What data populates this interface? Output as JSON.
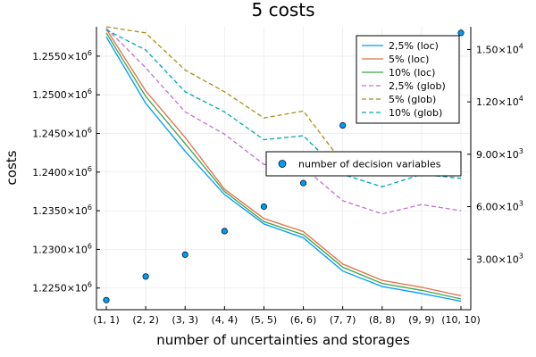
{
  "chart_data": {
    "type": "line",
    "title": "5 costs",
    "xlabel": "number of uncertainties and storages",
    "ylabel": "costs",
    "categories": [
      "(1, 1)",
      "(2, 2)",
      "(3, 3)",
      "(4, 4)",
      "(5, 5)",
      "(6, 6)",
      "(7, 7)",
      "(8, 8)",
      "(9, 9)",
      "(10, 10)"
    ],
    "ylim": [
      1222200,
      1258800
    ],
    "y_ticks": [
      {
        "value": 1225000,
        "mant": "1.2250×10",
        "exp": "6"
      },
      {
        "value": 1230000,
        "mant": "1.2300×10",
        "exp": "6"
      },
      {
        "value": 1235000,
        "mant": "1.2350×10",
        "exp": "6"
      },
      {
        "value": 1240000,
        "mant": "1.2400×10",
        "exp": "6"
      },
      {
        "value": 1245000,
        "mant": "1.2450×10",
        "exp": "6"
      },
      {
        "value": 1250000,
        "mant": "1.2500×10",
        "exp": "6"
      },
      {
        "value": 1255000,
        "mant": "1.2550×10",
        "exp": "6"
      }
    ],
    "y2lim": [
      100,
      16300
    ],
    "y2_ticks": [
      {
        "value": 3000,
        "mant": "3.00×10",
        "exp": "3"
      },
      {
        "value": 6000,
        "mant": "6.00×10",
        "exp": "3"
      },
      {
        "value": 9000,
        "mant": "9.00×10",
        "exp": "3"
      },
      {
        "value": 12000,
        "mant": "1.20×10",
        "exp": "4"
      },
      {
        "value": 15000,
        "mant": "1.50×10",
        "exp": "4"
      }
    ],
    "grid": true,
    "legend_position": "top-right",
    "series": [
      {
        "name": "2,5% (loc)",
        "color": "#009af9",
        "dash": "solid",
        "values": [
          1257500,
          1248900,
          1242700,
          1237100,
          1233300,
          1231500,
          1227200,
          1225200,
          1224300,
          1223300
        ]
      },
      {
        "name": "5% (loc)",
        "color": "#e26f46",
        "dash": "solid",
        "values": [
          1258500,
          1250500,
          1244500,
          1237800,
          1234000,
          1232300,
          1228100,
          1226000,
          1225100,
          1224000
        ]
      },
      {
        "name": "10% (loc)",
        "color": "#3da44d",
        "dash": "solid",
        "values": [
          1258000,
          1249800,
          1243700,
          1237500,
          1233600,
          1231900,
          1227700,
          1225600,
          1224700,
          1223600
        ]
      },
      {
        "name": "2,5% (glob)",
        "color": "#c271d2",
        "dash": "dashed",
        "values": [
          1258600,
          1253500,
          1247800,
          1244900,
          1241000,
          1240600,
          1236300,
          1234600,
          1235800,
          1235000
        ]
      },
      {
        "name": "5% (glob)",
        "color": "#ac8d18",
        "dash": "dashed",
        "values": [
          1258800,
          1258000,
          1253200,
          1250400,
          1247000,
          1247900,
          1241200,
          1240800,
          1241500,
          1241100
        ]
      },
      {
        "name": "10% (glob)",
        "color": "#00a9ad",
        "dash": "dashed",
        "values": [
          1258400,
          1255800,
          1250400,
          1247800,
          1244200,
          1244700,
          1239700,
          1238100,
          1239700,
          1239200
        ]
      }
    ],
    "scatter": {
      "name": "number of decision variables",
      "color": "#009af9",
      "axis": "right",
      "values": [
        650,
        2000,
        3250,
        4600,
        6000,
        7350,
        10650,
        12000,
        13550,
        15950
      ]
    }
  }
}
